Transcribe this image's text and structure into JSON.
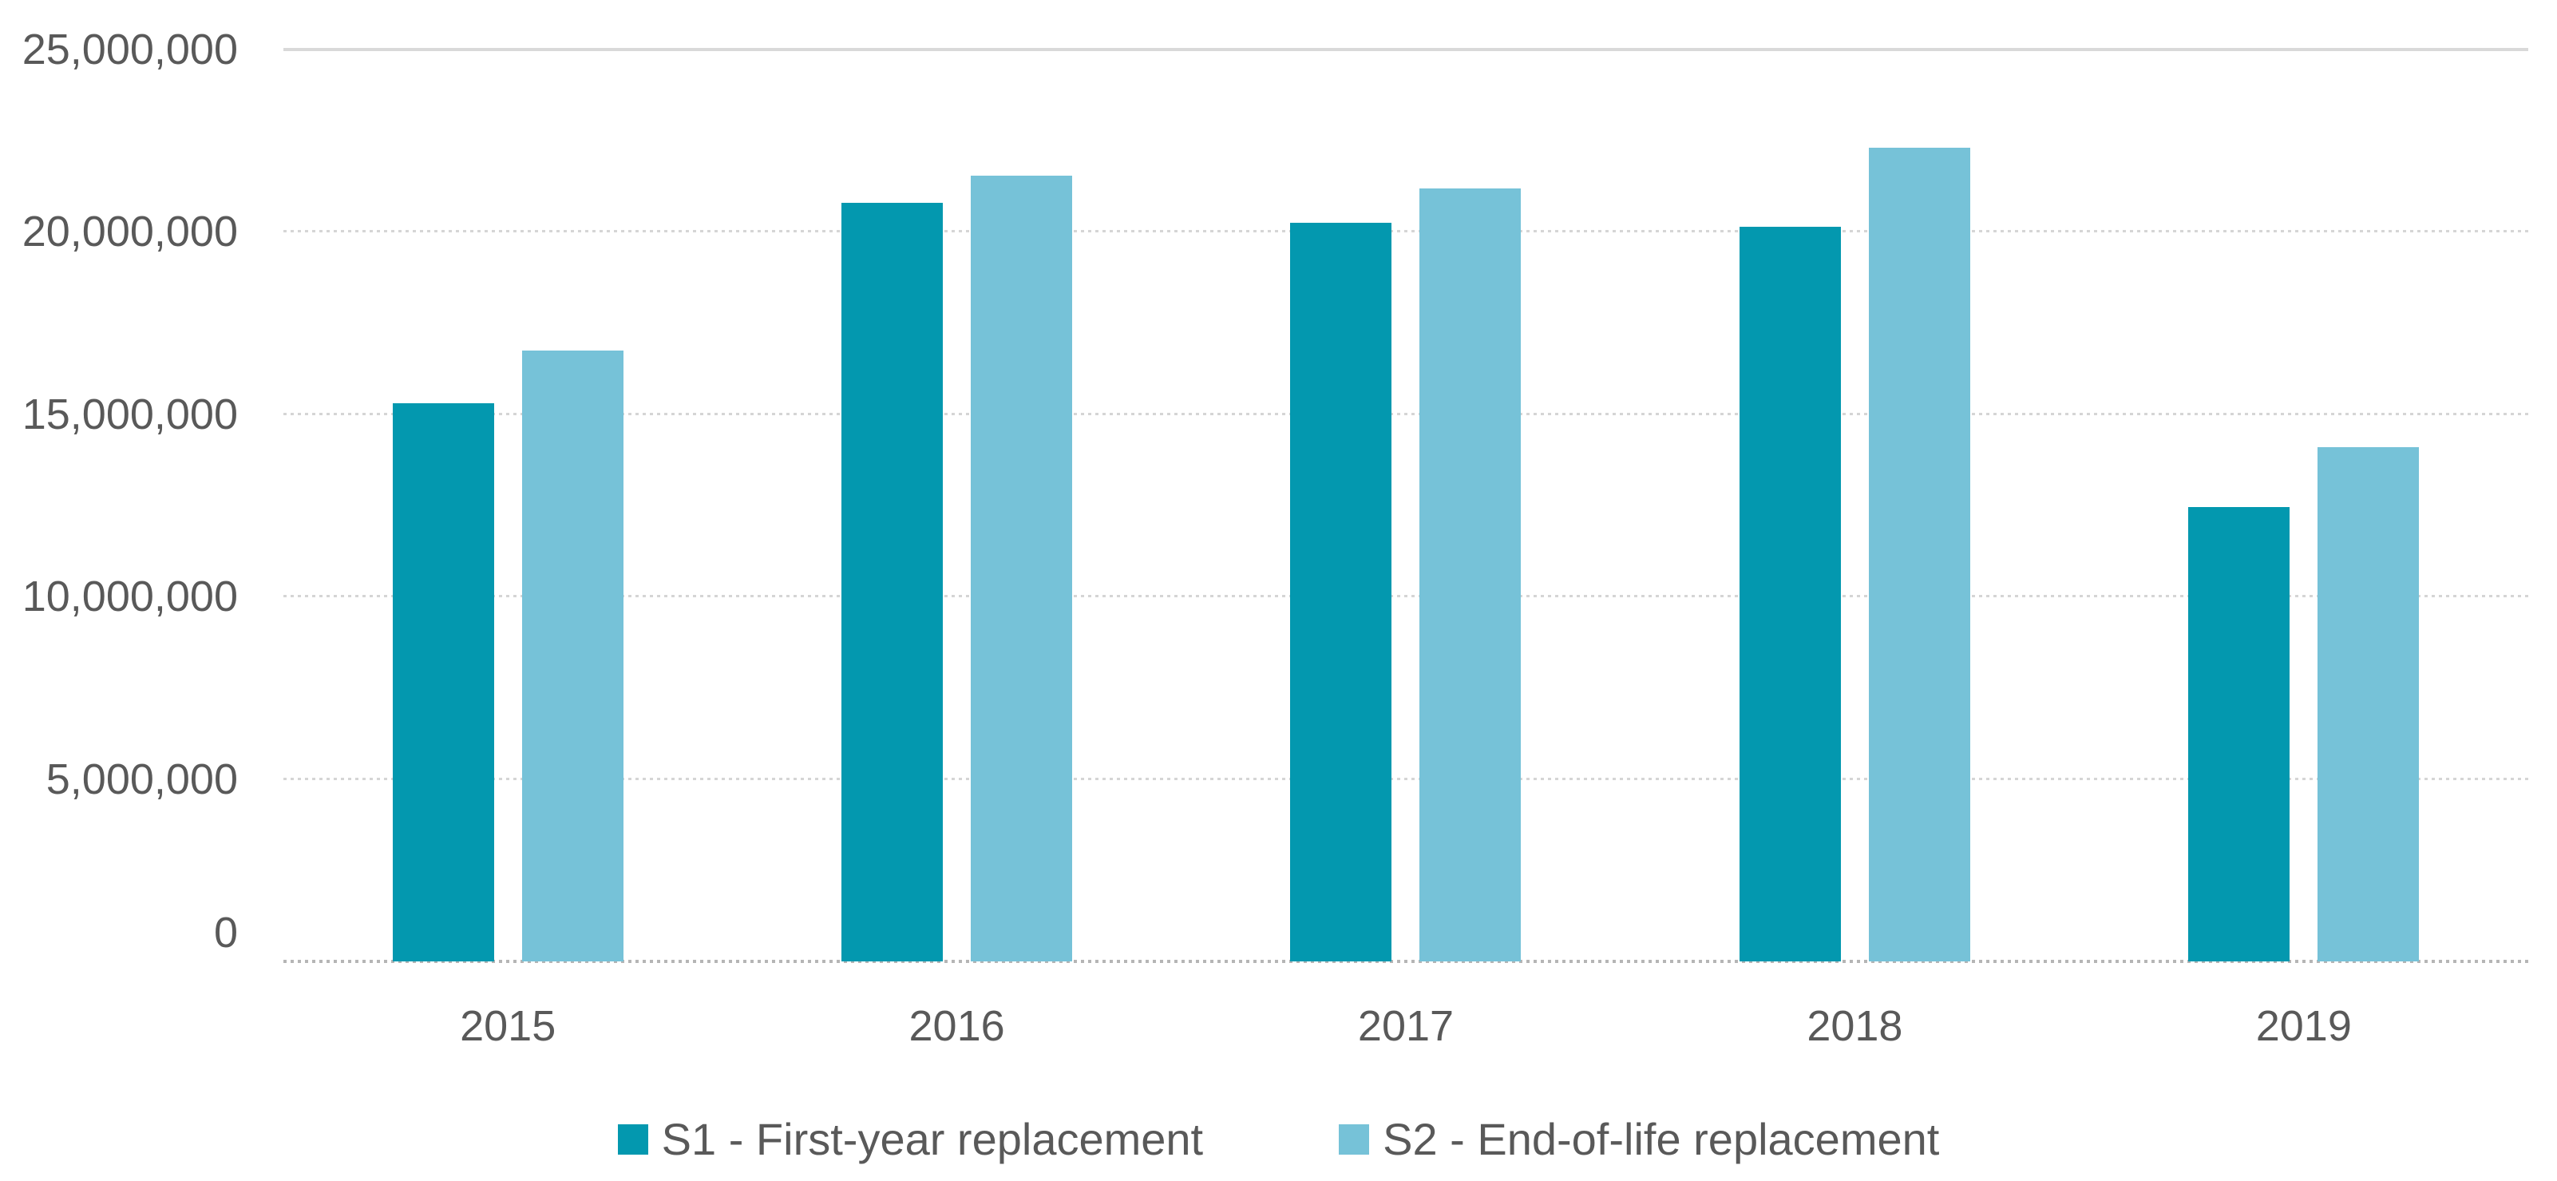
{
  "chart_data": {
    "type": "bar",
    "title": "",
    "xlabel": "",
    "ylabel": "",
    "categories": [
      "2015",
      "2016",
      "2017",
      "2018",
      "2019"
    ],
    "series": [
      {
        "name": "S1 - First-year replacement",
        "color": "#0398AF",
        "values": [
          15300000,
          20800000,
          20250000,
          20150000,
          12450000
        ]
      },
      {
        "name": "S2 - End-of-life replacement",
        "color": "#76C2D8",
        "values": [
          16750000,
          21550000,
          21200000,
          22300000,
          14100000
        ]
      }
    ],
    "ylim": [
      0,
      25000000
    ],
    "yticks": [
      {
        "value": 0,
        "label": "0"
      },
      {
        "value": 5000000,
        "label": "5,000,000"
      },
      {
        "value": 10000000,
        "label": "10,000,000"
      },
      {
        "value": 15000000,
        "label": "15,000,000"
      },
      {
        "value": 20000000,
        "label": "20,000,000"
      },
      {
        "value": 25000000,
        "label": "25,000,000"
      }
    ],
    "grid": "horizontal; dotted minor lines, solid top line, dotted darker baseline",
    "legend_position": "bottom-center"
  },
  "legend": {
    "items": [
      {
        "label": "S1 - First-year replacement",
        "color": "#0398AF"
      },
      {
        "label": "S2 - End-of-life replacement",
        "color": "#76C2D8"
      }
    ]
  },
  "colors": {
    "background": "#FFFFFF",
    "text": "#595959",
    "gridline_dotted": "#D5D5D5",
    "gridline_top_solid": "#D9D9D9",
    "axis_baseline": "#B5B5B5",
    "series1": "#0398AF",
    "series2": "#76C2D8"
  }
}
